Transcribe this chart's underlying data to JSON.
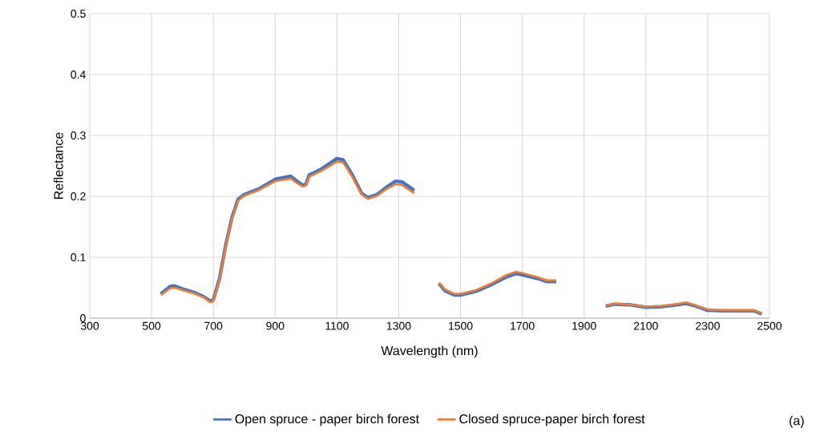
{
  "chart_data": {
    "type": "line",
    "xlabel": "Wavelength (nm)",
    "ylabel": "Reflectance",
    "xlim": [
      300,
      2500
    ],
    "xticks": [
      300,
      500,
      700,
      900,
      1100,
      1300,
      1500,
      1700,
      1900,
      2100,
      2300,
      2500
    ],
    "ylim": [
      0,
      0.5
    ],
    "yticks": [
      0,
      0.1,
      0.2,
      0.3,
      0.4,
      0.5
    ],
    "grid": true,
    "legend": "bottom",
    "annotations": [
      "(a)"
    ],
    "series": [
      {
        "name": "Open spruce - paper birch forest",
        "color": "#4472c4",
        "x": [
          530,
          560,
          575,
          600,
          640,
          670,
          690,
          700,
          720,
          740,
          760,
          780,
          800,
          850,
          900,
          950,
          970,
          990,
          1000,
          1010,
          1050,
          1100,
          1120,
          1150,
          1180,
          1200,
          1230,
          1260,
          1290,
          1310,
          1350,
          1390,
          1430,
          1450,
          1480,
          1500,
          1550,
          1600,
          1650,
          1680,
          1700,
          1750,
          1780,
          1810,
          1890,
          1970,
          2000,
          2050,
          2100,
          2150,
          2200,
          2230,
          2260,
          2300,
          2350,
          2400,
          2450,
          2475
        ],
        "values": [
          0.04,
          0.052,
          0.053,
          0.048,
          0.042,
          0.035,
          0.028,
          0.03,
          0.065,
          0.12,
          0.165,
          0.195,
          0.203,
          0.213,
          0.228,
          0.233,
          0.225,
          0.218,
          0.22,
          0.235,
          0.245,
          0.262,
          0.26,
          0.235,
          0.205,
          0.198,
          0.203,
          0.215,
          0.225,
          0.224,
          0.21,
          null,
          0.057,
          0.045,
          0.038,
          0.038,
          0.044,
          0.055,
          0.068,
          0.073,
          0.071,
          0.065,
          0.06,
          0.06,
          null,
          0.02,
          0.023,
          0.022,
          0.018,
          0.019,
          0.022,
          0.024,
          0.02,
          0.013,
          0.012,
          0.012,
          0.012,
          0.007
        ]
      },
      {
        "name": "Closed spruce-paper birch forest",
        "color": "#ed7d31",
        "x": [
          530,
          560,
          575,
          600,
          640,
          670,
          690,
          700,
          720,
          740,
          760,
          780,
          800,
          850,
          900,
          950,
          970,
          990,
          1000,
          1010,
          1050,
          1100,
          1120,
          1150,
          1180,
          1200,
          1230,
          1260,
          1290,
          1310,
          1350,
          1390,
          1430,
          1450,
          1480,
          1500,
          1550,
          1600,
          1650,
          1680,
          1700,
          1750,
          1780,
          1810,
          1890,
          1970,
          2000,
          2050,
          2100,
          2150,
          2200,
          2230,
          2260,
          2300,
          2350,
          2400,
          2450,
          2475
        ],
        "values": [
          0.038,
          0.049,
          0.05,
          0.046,
          0.04,
          0.034,
          0.026,
          0.028,
          0.063,
          0.118,
          0.163,
          0.193,
          0.201,
          0.211,
          0.225,
          0.229,
          0.222,
          0.216,
          0.218,
          0.232,
          0.242,
          0.257,
          0.256,
          0.232,
          0.203,
          0.196,
          0.201,
          0.212,
          0.22,
          0.219,
          0.205,
          null,
          0.058,
          0.047,
          0.04,
          0.04,
          0.046,
          0.057,
          0.071,
          0.076,
          0.074,
          0.067,
          0.062,
          0.062,
          null,
          0.021,
          0.024,
          0.022,
          0.019,
          0.02,
          0.023,
          0.026,
          0.021,
          0.014,
          0.013,
          0.013,
          0.013,
          0.008
        ]
      }
    ]
  }
}
